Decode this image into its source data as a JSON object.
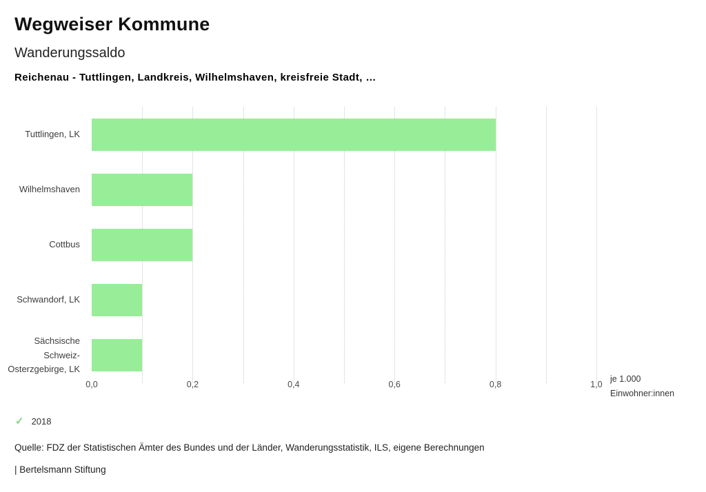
{
  "header": {
    "title": "Wegweiser Kommune",
    "subtitle": "Wanderungssaldo",
    "description": "Reichenau - Tuttlingen, Landkreis, Wilhelmshaven, kreisfreie Stadt, …"
  },
  "chart_data": {
    "type": "bar",
    "orientation": "horizontal",
    "title": "Wanderungssaldo",
    "categories": [
      "Tuttlingen, LK",
      "Wilhelmshaven",
      "Cottbus",
      "Schwandorf, LK",
      "Sächsische Schweiz-Osterzgebirge, LK"
    ],
    "values": [
      0.8,
      0.2,
      0.2,
      0.1,
      0.1
    ],
    "xlabel": "je 1.000 Einwohner:innen",
    "unit_line1": "je 1.000",
    "unit_line2": "Einwohner:innen",
    "xlim": [
      0,
      1.0
    ],
    "x_ticks": [
      "0,0",
      "0,2",
      "0,4",
      "0,6",
      "0,8",
      "1,0"
    ],
    "x_tick_values": [
      0,
      0.2,
      0.4,
      0.6,
      0.8,
      1.0
    ],
    "minor_grid_step": 0.1,
    "grid": "dotted-vertical",
    "bar_color": "#98ee98",
    "legend_position": "bottom-left"
  },
  "legend": {
    "check_icon": "✓",
    "check_color": "#7ed87e",
    "year": "2018"
  },
  "footer": {
    "source": "Quelle: FDZ der Statistischen Ämter des Bundes und der Länder, Wanderungsstatistik, ILS, eigene Berechnungen",
    "attribution": "| Bertelsmann Stiftung"
  }
}
